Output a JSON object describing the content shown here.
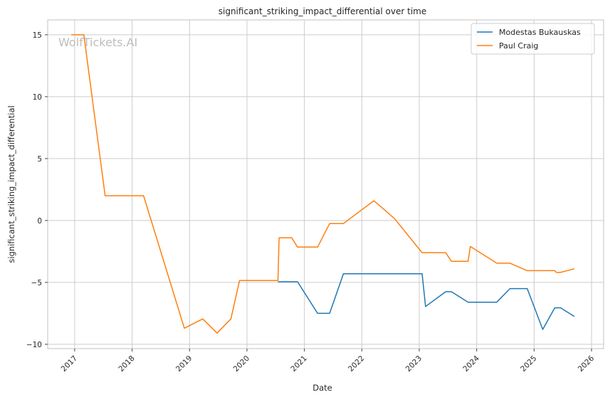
{
  "chart_data": {
    "type": "line",
    "title": "significant_striking_impact_differential over time",
    "xlabel": "Date",
    "ylabel": "significant_striking_impact_differential",
    "xlim": [
      2016.53,
      2026.21
    ],
    "ylim": [
      -10.35,
      16.2
    ],
    "xticks": [
      2017,
      2018,
      2019,
      2020,
      2021,
      2022,
      2023,
      2024,
      2025,
      2026
    ],
    "xtick_labels": [
      "2017",
      "2018",
      "2019",
      "2020",
      "2021",
      "2022",
      "2023",
      "2024",
      "2025",
      "2026"
    ],
    "yticks": [
      15,
      10,
      5,
      0,
      -5,
      -10
    ],
    "ytick_labels": [
      "15",
      "10",
      "5",
      "0",
      "−5",
      "−10"
    ],
    "grid": true,
    "legend_position": "top-right",
    "watermark": "WolfTickets.AI",
    "series": [
      {
        "name": "Modestas Bukauskas",
        "color": "#1f77b4",
        "x": [
          2020.54,
          2020.88,
          2021.23,
          2021.44,
          2021.68,
          2023.05,
          2023.11,
          2023.46,
          2023.56,
          2023.85,
          2024.35,
          2024.58,
          2024.88,
          2025.15,
          2025.36,
          2025.46,
          2025.7
        ],
        "y": [
          -4.95,
          -4.95,
          -7.5,
          -7.5,
          -4.3,
          -4.3,
          -6.95,
          -5.75,
          -5.75,
          -6.6,
          -6.6,
          -5.5,
          -5.5,
          -8.8,
          -7.05,
          -7.05,
          -7.75
        ]
      },
      {
        "name": "Paul Craig",
        "color": "#ff7f0e",
        "x": [
          2016.94,
          2017.16,
          2017.53,
          2018.2,
          2018.91,
          2019.23,
          2019.48,
          2019.72,
          2019.87,
          2020.54,
          2020.56,
          2020.78,
          2020.88,
          2021.23,
          2021.44,
          2021.68,
          2022.21,
          2022.57,
          2023.05,
          2023.46,
          2023.56,
          2023.85,
          2023.89,
          2024.35,
          2024.58,
          2024.88,
          2025.36,
          2025.39,
          2025.45,
          2025.7
        ],
        "y": [
          15,
          15,
          2.0,
          2.0,
          -8.7,
          -7.95,
          -9.1,
          -7.95,
          -4.85,
          -4.85,
          -1.4,
          -1.4,
          -2.15,
          -2.15,
          -0.25,
          -0.25,
          1.6,
          0.15,
          -2.6,
          -2.6,
          -3.3,
          -3.3,
          -2.1,
          -3.45,
          -3.45,
          -4.05,
          -4.05,
          -4.2,
          -4.2,
          -3.9
        ]
      }
    ]
  }
}
